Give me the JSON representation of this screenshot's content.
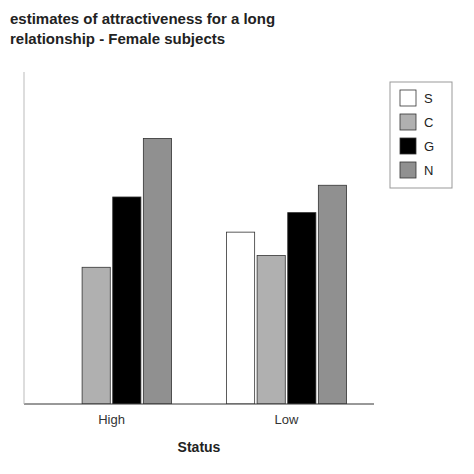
{
  "chart_data": {
    "type": "bar",
    "title": "estimates of attractiveness for a long",
    "subtitle": "relationship - Female subjects",
    "x_label": "Status",
    "categories": [
      "High",
      "Low"
    ],
    "series": [
      {
        "name": "S",
        "color": "white",
        "values": [
          0.0,
          4.4
        ]
      },
      {
        "name": "C",
        "color": "#b0b0b0",
        "values": [
          3.5,
          3.8
        ]
      },
      {
        "name": "G",
        "color": "#000000",
        "values": [
          5.3,
          4.9
        ]
      },
      {
        "name": "N",
        "color": "#909090",
        "values": [
          6.8,
          5.6
        ]
      }
    ],
    "ylim": [
      0,
      8.5
    ],
    "grid": false,
    "legend": "upper right",
    "tick_labels": "x"
  }
}
